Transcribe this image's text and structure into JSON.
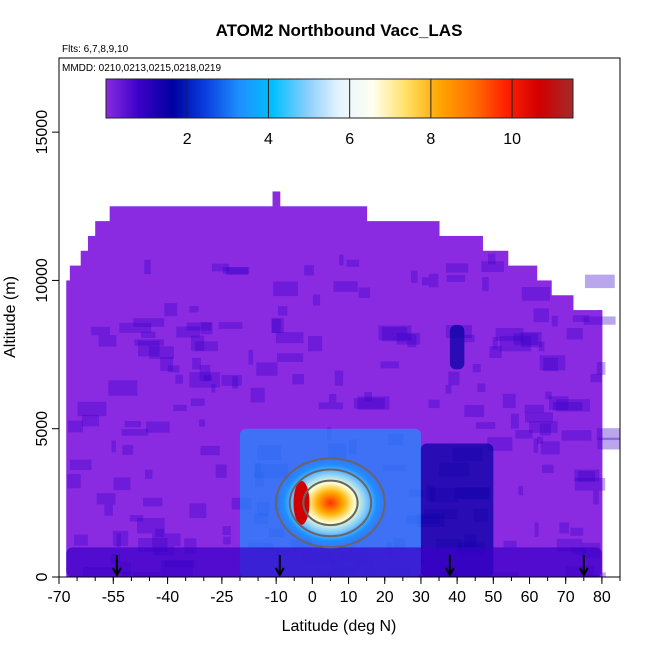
{
  "chart_data": {
    "type": "heatmap",
    "title": "ATOM2 Northbound Vacc_LAS",
    "subtitle_flights": "Flts: 6,7,8,9,10",
    "subtitle_dates": "MMDD: 0210,0213,0215,0218,0219",
    "xlabel": "Latitude (deg N)",
    "ylabel": "Altitude (m)",
    "xlim": [
      -70,
      85
    ],
    "ylim": [
      0,
      17500
    ],
    "x_ticks": [
      -70,
      -55,
      -40,
      -25,
      -10,
      0,
      10,
      20,
      30,
      40,
      50,
      60,
      70,
      80
    ],
    "x_tick_labels": [
      "-70",
      "-55",
      "-40",
      "-25",
      "-10",
      "0",
      "10",
      "20",
      "30",
      "40",
      "50",
      "60",
      "70",
      "80"
    ],
    "y_ticks": [
      0,
      5000,
      10000,
      15000
    ],
    "y_tick_labels": [
      "0",
      "5000",
      "10000",
      "15000"
    ],
    "colorbar": {
      "range": [
        0,
        11.5
      ],
      "ticks": [
        2,
        4,
        6,
        8,
        10
      ],
      "tick_labels": [
        "2",
        "4",
        "6",
        "8",
        "10"
      ],
      "colors": [
        "#8a2be2",
        "#3a00c8",
        "#0000a0",
        "#0a40e0",
        "#1e90ff",
        "#00bfff",
        "#87cefa",
        "#e6f4ff",
        "#fffff0",
        "#ffe066",
        "#ffa500",
        "#ff7000",
        "#ff2000",
        "#d00000",
        "#a52a2a"
      ]
    },
    "cloud_top_profile": [
      {
        "lat": -68,
        "alt": 10000
      },
      {
        "lat": -67,
        "alt": 10500
      },
      {
        "lat": -64,
        "alt": 11000
      },
      {
        "lat": -62,
        "alt": 11500
      },
      {
        "lat": -60,
        "alt": 12000
      },
      {
        "lat": -56,
        "alt": 12500
      },
      {
        "lat": -11,
        "alt": 13000
      },
      {
        "lat": -9,
        "alt": 12500
      },
      {
        "lat": 15,
        "alt": 12000
      },
      {
        "lat": 35,
        "alt": 11500
      },
      {
        "lat": 47,
        "alt": 11000
      },
      {
        "lat": 54,
        "alt": 10500
      },
      {
        "lat": 62,
        "alt": 10000
      },
      {
        "lat": 66,
        "alt": 9500
      },
      {
        "lat": 72,
        "alt": 9000
      },
      {
        "lat": 80,
        "alt": 9000
      }
    ],
    "data_extent_lat": [
      -68,
      80
    ],
    "hotspot": {
      "lat_range": [
        -10,
        20
      ],
      "alt_range": [
        1000,
        4000
      ],
      "peak_value": 11,
      "peak_lat": -3,
      "peak_alt": 2500
    },
    "enhanced_regions": [
      {
        "lat_range": [
          -20,
          30
        ],
        "alt_range": [
          0,
          5000
        ],
        "value": 3
      },
      {
        "lat_range": [
          30,
          50
        ],
        "alt_range": [
          0,
          4500
        ],
        "value": 1.5
      },
      {
        "lat_range": [
          -68,
          80
        ],
        "alt_range": [
          0,
          1000
        ],
        "value": 1
      },
      {
        "lat_range": [
          38,
          42
        ],
        "alt_range": [
          7000,
          8500
        ],
        "value": 1.5
      }
    ],
    "markers_lat": [
      -54,
      -9,
      38,
      75
    ],
    "marker_style": "downward arrows along x-axis",
    "contour_overlay": "grey contour lines over hotspot"
  }
}
